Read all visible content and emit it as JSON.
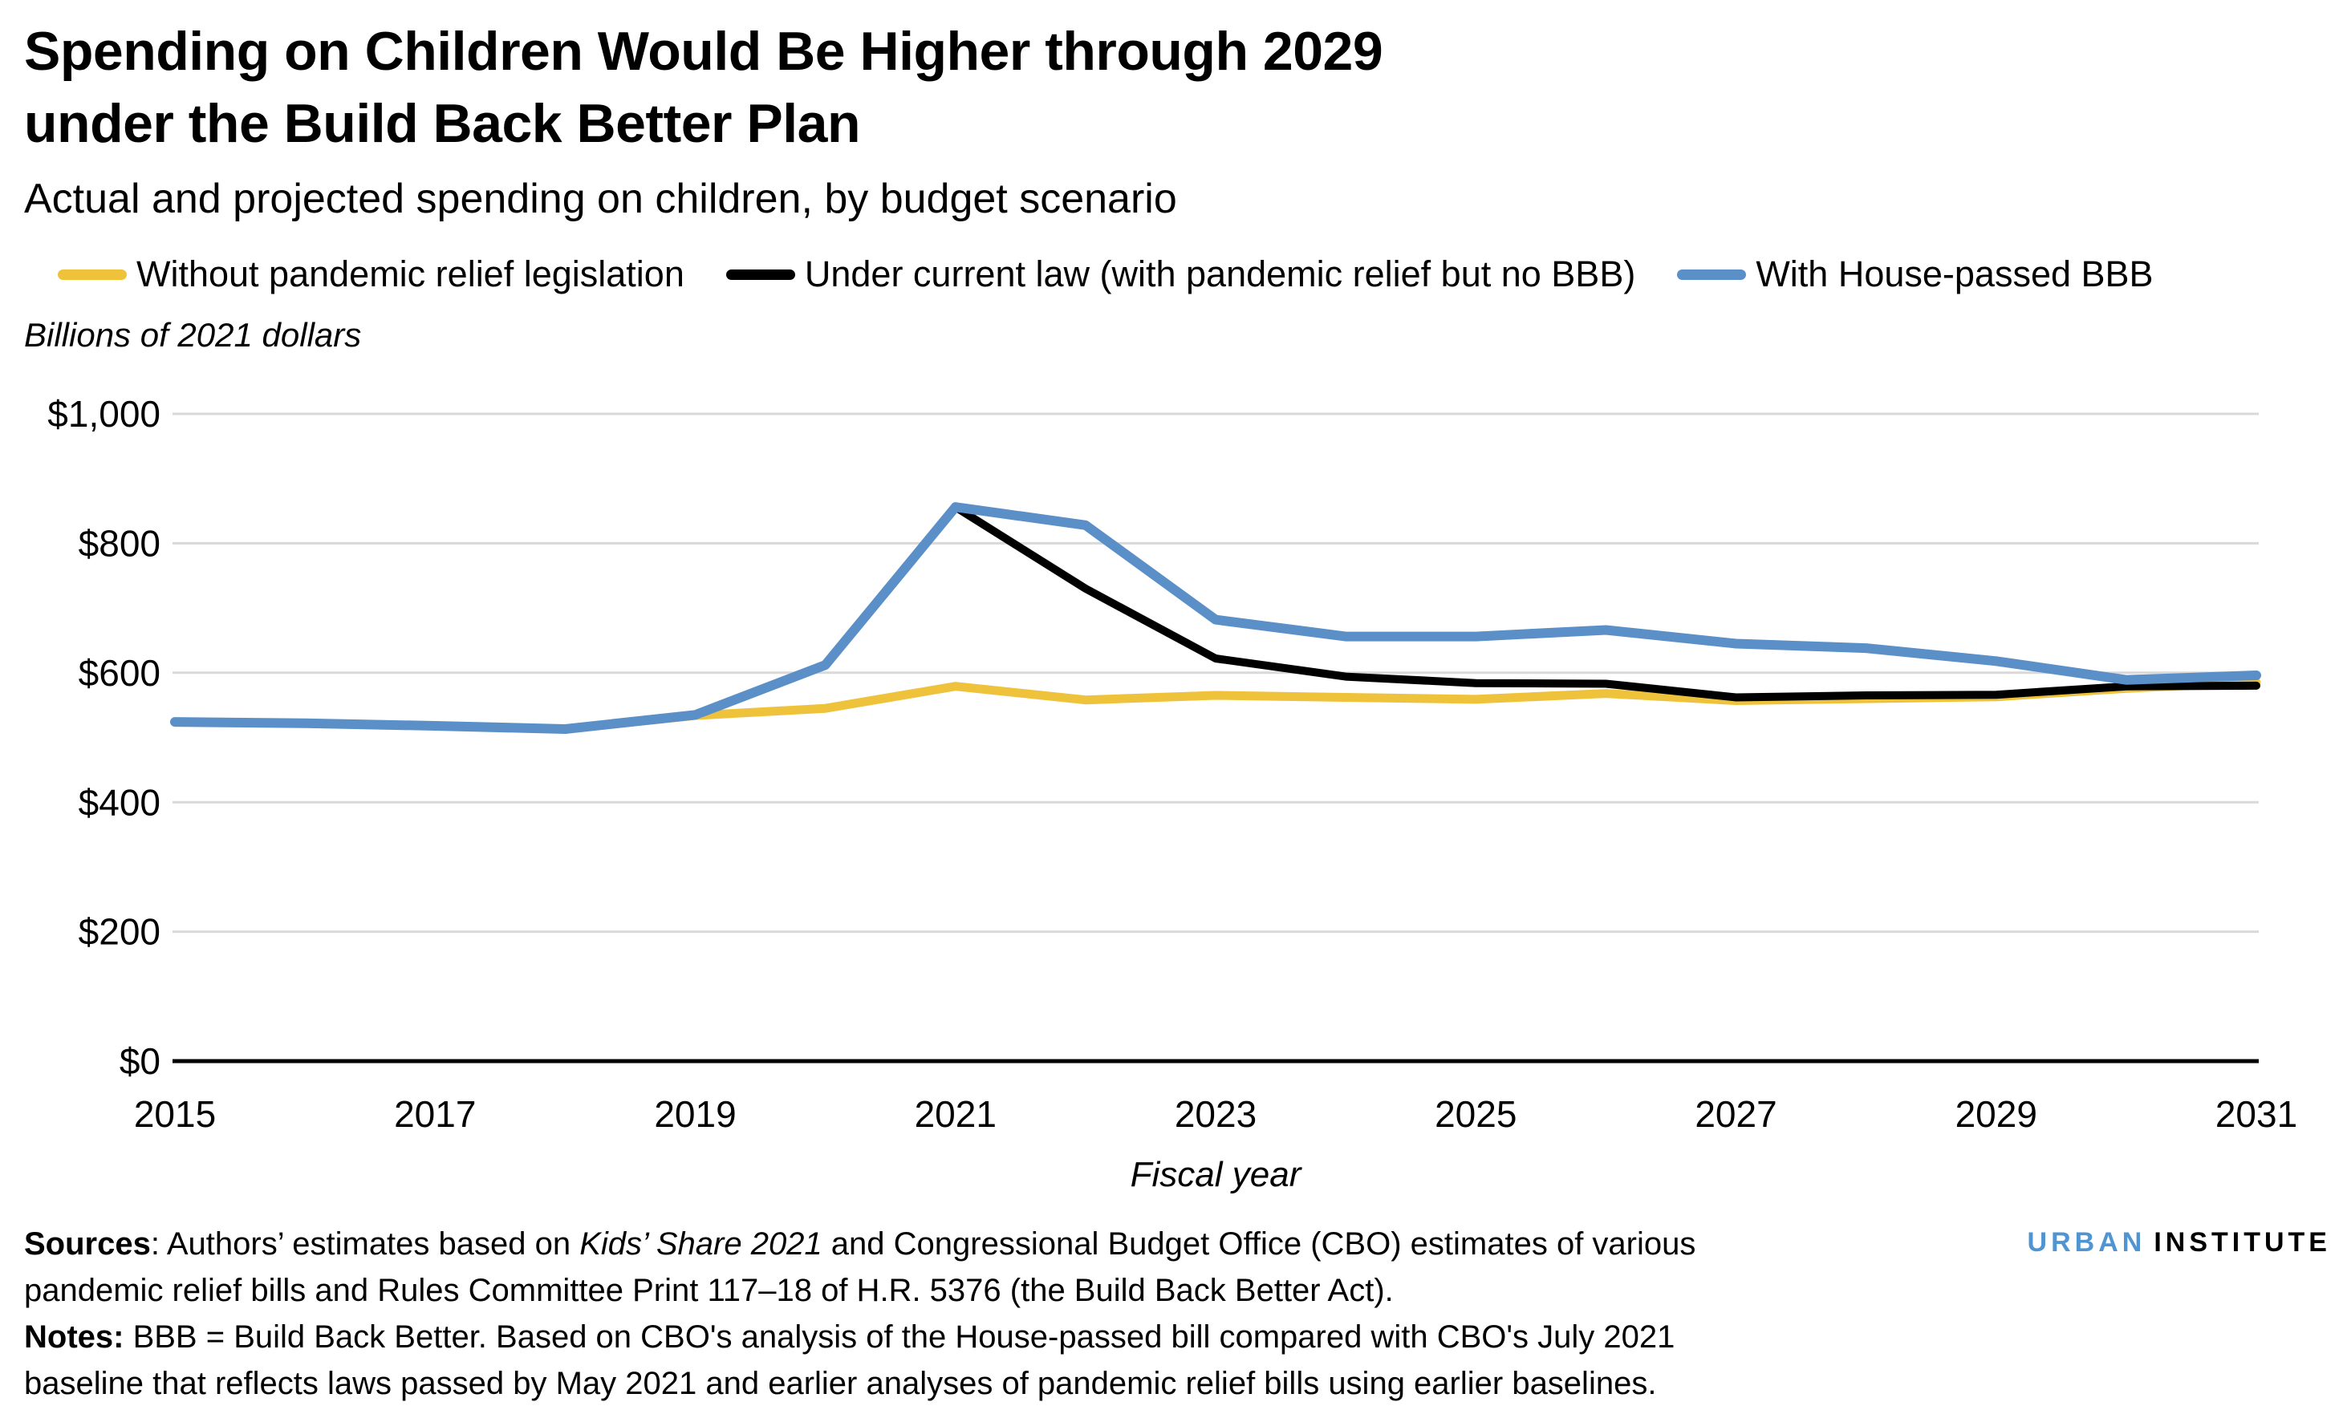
{
  "header": {
    "title_line1": "Spending on Children Would Be Higher through 2029",
    "title_line2": "under the Build Back Better Plan",
    "subtitle": "Actual and projected spending on children, by budget scenario",
    "unit_label": "Billions of 2021 dollars"
  },
  "chart_data": {
    "type": "line",
    "title": "Spending on Children Would Be Higher through 2029 under the Build Back Better Plan",
    "subtitle": "Actual and projected spending on children, by budget scenario",
    "xlabel": "Fiscal year",
    "ylabel": "Billions of 2021 dollars",
    "x": [
      2015,
      2016,
      2017,
      2018,
      2019,
      2020,
      2021,
      2022,
      2023,
      2024,
      2025,
      2026,
      2027,
      2028,
      2029,
      2030,
      2031
    ],
    "series": [
      {
        "name": "Without pandemic relief legislation",
        "color": "#EFC23C",
        "values": [
          524,
          522,
          518,
          513,
          534,
          545,
          579,
          558,
          565,
          562,
          559,
          568,
          557,
          560,
          563,
          576,
          585
        ]
      },
      {
        "name": "Under current law (with pandemic relief but no BBB)",
        "color": "#000000",
        "values": [
          524,
          522,
          518,
          513,
          535,
          612,
          856,
          730,
          622,
          594,
          584,
          583,
          562,
          565,
          566,
          579,
          580
        ]
      },
      {
        "name": "With House-passed BBB",
        "color": "#5A8FC8",
        "values": [
          524,
          522,
          518,
          513,
          535,
          612,
          856,
          828,
          682,
          656,
          656,
          666,
          645,
          638,
          618,
          589,
          596
        ]
      }
    ],
    "ylim": [
      0,
      1000
    ],
    "ytick_step": 200,
    "ytick_labels": [
      "$0",
      "$200",
      "$400",
      "$600",
      "$800",
      "$1,000"
    ],
    "xtick_labels": [
      "2015",
      "2017",
      "2019",
      "2021",
      "2023",
      "2025",
      "2027",
      "2029",
      "2031"
    ],
    "grid": "horizontal",
    "legend_position": "top"
  },
  "footer": {
    "sources_label": "Sources",
    "sources_text_1": ": Authors’ estimates based on ",
    "sources_italic": "Kids’ Share 2021",
    "sources_text_2": " and Congressional Budget Office (CBO) estimates of various pandemic relief bills and Rules Committee Print 117–18 of H.R. 5376 (the Build Back Better Act).",
    "notes_label": "Notes:",
    "notes_text": " BBB = Build Back Better. Based on CBO's analysis of the House-passed bill compared with CBO's July 2021 baseline that reflects laws passed by May 2021 and earlier analyses of pandemic relief bills using earlier baselines.",
    "logo_urban": "URBAN",
    "logo_institute": "INSTITUTE",
    "logo_urban_color": "#5095D2"
  }
}
